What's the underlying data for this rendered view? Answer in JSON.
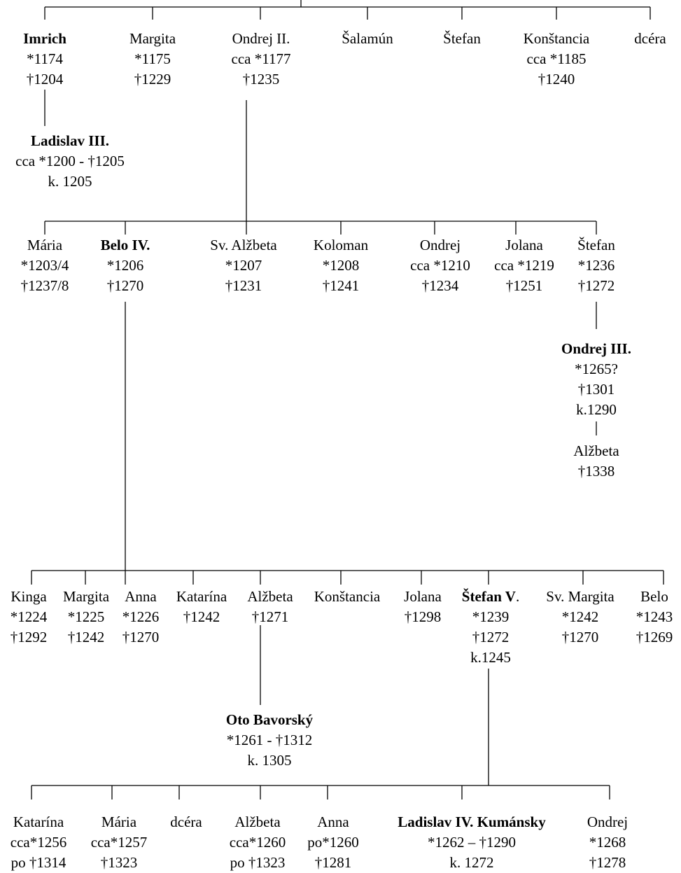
{
  "people": [
    {
      "id": "imrich",
      "name": "Imrich",
      "ruler": true,
      "lines": [
        "*1174",
        "†1204"
      ]
    },
    {
      "id": "margita-g1",
      "name": "Margita",
      "ruler": false,
      "lines": [
        "*1175",
        "†1229"
      ]
    },
    {
      "id": "ondrej-ii",
      "name": "Ondrej II.",
      "ruler": false,
      "lines": [
        "cca *1177",
        "†1235"
      ]
    },
    {
      "id": "salamun",
      "name": "Šalamún",
      "ruler": false,
      "lines": []
    },
    {
      "id": "stefan-g1",
      "name": "Štefan",
      "ruler": false,
      "lines": []
    },
    {
      "id": "konstancia-g1",
      "name": "Konštancia",
      "ruler": false,
      "lines": [
        "cca *1185",
        "†1240"
      ]
    },
    {
      "id": "dcera-g1",
      "name": "dcéra",
      "ruler": false,
      "lines": []
    },
    {
      "id": "ladislav-iii",
      "name": "Ladislav III.",
      "ruler": true,
      "lines": [
        "cca *1200 - †1205",
        "k. 1205"
      ]
    },
    {
      "id": "maria-g2",
      "name": "Mária",
      "ruler": false,
      "lines": [
        "*1203/4",
        "†1237/8"
      ]
    },
    {
      "id": "belo-iv",
      "name": "Belo IV.",
      "ruler": true,
      "lines": [
        "*1206",
        "†1270"
      ]
    },
    {
      "id": "alzbeta-sv",
      "name": "Sv. Alžbeta",
      "ruler": false,
      "lines": [
        "*1207",
        "†1231"
      ]
    },
    {
      "id": "koloman",
      "name": "Koloman",
      "ruler": false,
      "lines": [
        "*1208",
        "†1241"
      ]
    },
    {
      "id": "ondrej-g2",
      "name": "Ondrej",
      "ruler": false,
      "lines": [
        "cca *1210",
        "†1234"
      ]
    },
    {
      "id": "jolana-g2",
      "name": "Jolana",
      "ruler": false,
      "lines": [
        "cca *1219",
        "†1251"
      ]
    },
    {
      "id": "stefan-g2",
      "name": "Štefan",
      "ruler": false,
      "lines": [
        "*1236",
        "†1272"
      ]
    },
    {
      "id": "ondrej-iii",
      "name": "Ondrej III.",
      "ruler": true,
      "lines": [
        "*1265?",
        "†1301",
        "k.1290"
      ]
    },
    {
      "id": "alzbeta-oiii",
      "name": "Alžbeta",
      "ruler": false,
      "lines": [
        "†1338"
      ]
    },
    {
      "id": "kinga",
      "name": "Kinga",
      "ruler": false,
      "lines": [
        "*1224",
        "†1292"
      ]
    },
    {
      "id": "margita-g3",
      "name": "Margita",
      "ruler": false,
      "lines": [
        "*1225",
        "†1242"
      ]
    },
    {
      "id": "anna-g3",
      "name": "Anna",
      "ruler": false,
      "lines": [
        "*1226",
        "†1270"
      ]
    },
    {
      "id": "katarina-g3",
      "name": "Katarína",
      "ruler": false,
      "lines": [
        "†1242"
      ]
    },
    {
      "id": "alzbeta-g3",
      "name": "Alžbeta",
      "ruler": false,
      "lines": [
        "†1271"
      ]
    },
    {
      "id": "konstancia-g3",
      "name": "Konštancia",
      "ruler": false,
      "lines": []
    },
    {
      "id": "jolana-g3",
      "name": "Jolana",
      "ruler": false,
      "lines": [
        "†1298"
      ]
    },
    {
      "id": "stefan-v",
      "name": "Štefan V",
      "suffix": ".",
      "ruler": true,
      "lines": [
        "*1239",
        "†1272",
        "k.1245"
      ]
    },
    {
      "id": "sv-margita",
      "name": "Sv. Margita",
      "ruler": false,
      "lines": [
        "*1242",
        "†1270"
      ]
    },
    {
      "id": "belo-g3",
      "name": "Belo",
      "ruler": false,
      "lines": [
        "*1243",
        "†1269"
      ]
    },
    {
      "id": "oto-bavorsky",
      "name": "Oto Bavorský",
      "ruler": true,
      "lines": [
        "*1261 - †1312",
        "k. 1305"
      ]
    },
    {
      "id": "katarina-g4",
      "name": "Katarína",
      "ruler": false,
      "lines": [
        "cca*1256",
        "po †1314"
      ]
    },
    {
      "id": "maria-g4",
      "name": "Mária",
      "ruler": false,
      "lines": [
        "cca*1257",
        "†1323"
      ]
    },
    {
      "id": "dcera-g4",
      "name": "dcéra",
      "ruler": false,
      "lines": []
    },
    {
      "id": "alzbeta-g4",
      "name": "Alžbeta",
      "ruler": false,
      "lines": [
        "cca*1260",
        "po †1323"
      ]
    },
    {
      "id": "anna-g4",
      "name": "Anna",
      "ruler": false,
      "lines": [
        "po*1260",
        "†1281"
      ]
    },
    {
      "id": "ladislav-iv",
      "name": "Ladislav IV. Kumánsky",
      "ruler": true,
      "lines": [
        "*1262 – †1290",
        "k. 1272"
      ]
    },
    {
      "id": "ondrej-g4",
      "name": "Ondrej",
      "ruler": false,
      "lines": [
        "*1268",
        "†1278"
      ]
    }
  ]
}
